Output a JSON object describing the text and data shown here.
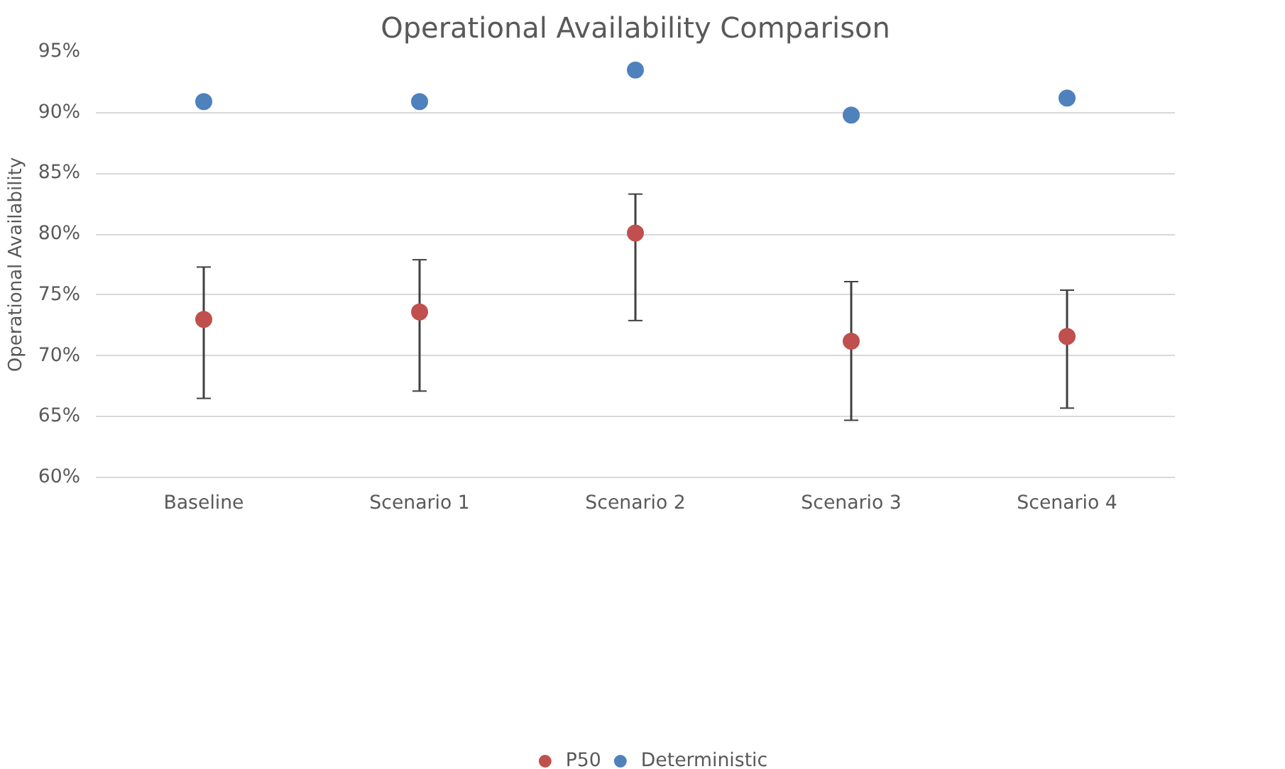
{
  "chart_data": {
    "type": "scatter",
    "title": "Operational Availability Comparison",
    "ylabel": "Operational Availability",
    "categories": [
      "Baseline",
      "Scenario 1",
      "Scenario 2",
      "Scenario 3",
      "Scenario 4"
    ],
    "series": [
      {
        "name": "P50",
        "color": "#c0504d",
        "values": [
          73.0,
          73.6,
          80.1,
          71.2,
          71.6
        ],
        "errors": [
          [
            66.5,
            77.3
          ],
          [
            67.1,
            77.9
          ],
          [
            72.9,
            83.3
          ],
          [
            64.7,
            76.1
          ],
          [
            65.7,
            75.4
          ]
        ]
      },
      {
        "name": "Deterministic",
        "color": "#4f81bd",
        "values": [
          90.9,
          90.9,
          93.5,
          89.8,
          91.2
        ]
      }
    ],
    "ylim": [
      60,
      95
    ],
    "yticks": [
      {
        "value": 60,
        "label": "60%"
      },
      {
        "value": 65,
        "label": "65%"
      },
      {
        "value": 70,
        "label": "70%"
      },
      {
        "value": 75,
        "label": "75%"
      },
      {
        "value": 80,
        "label": "80%"
      },
      {
        "value": 85,
        "label": "85%"
      },
      {
        "value": 90,
        "label": "90%"
      },
      {
        "value": 95,
        "label": "95%"
      }
    ],
    "grid": "y",
    "legend": "bottom",
    "marker": "circle"
  }
}
